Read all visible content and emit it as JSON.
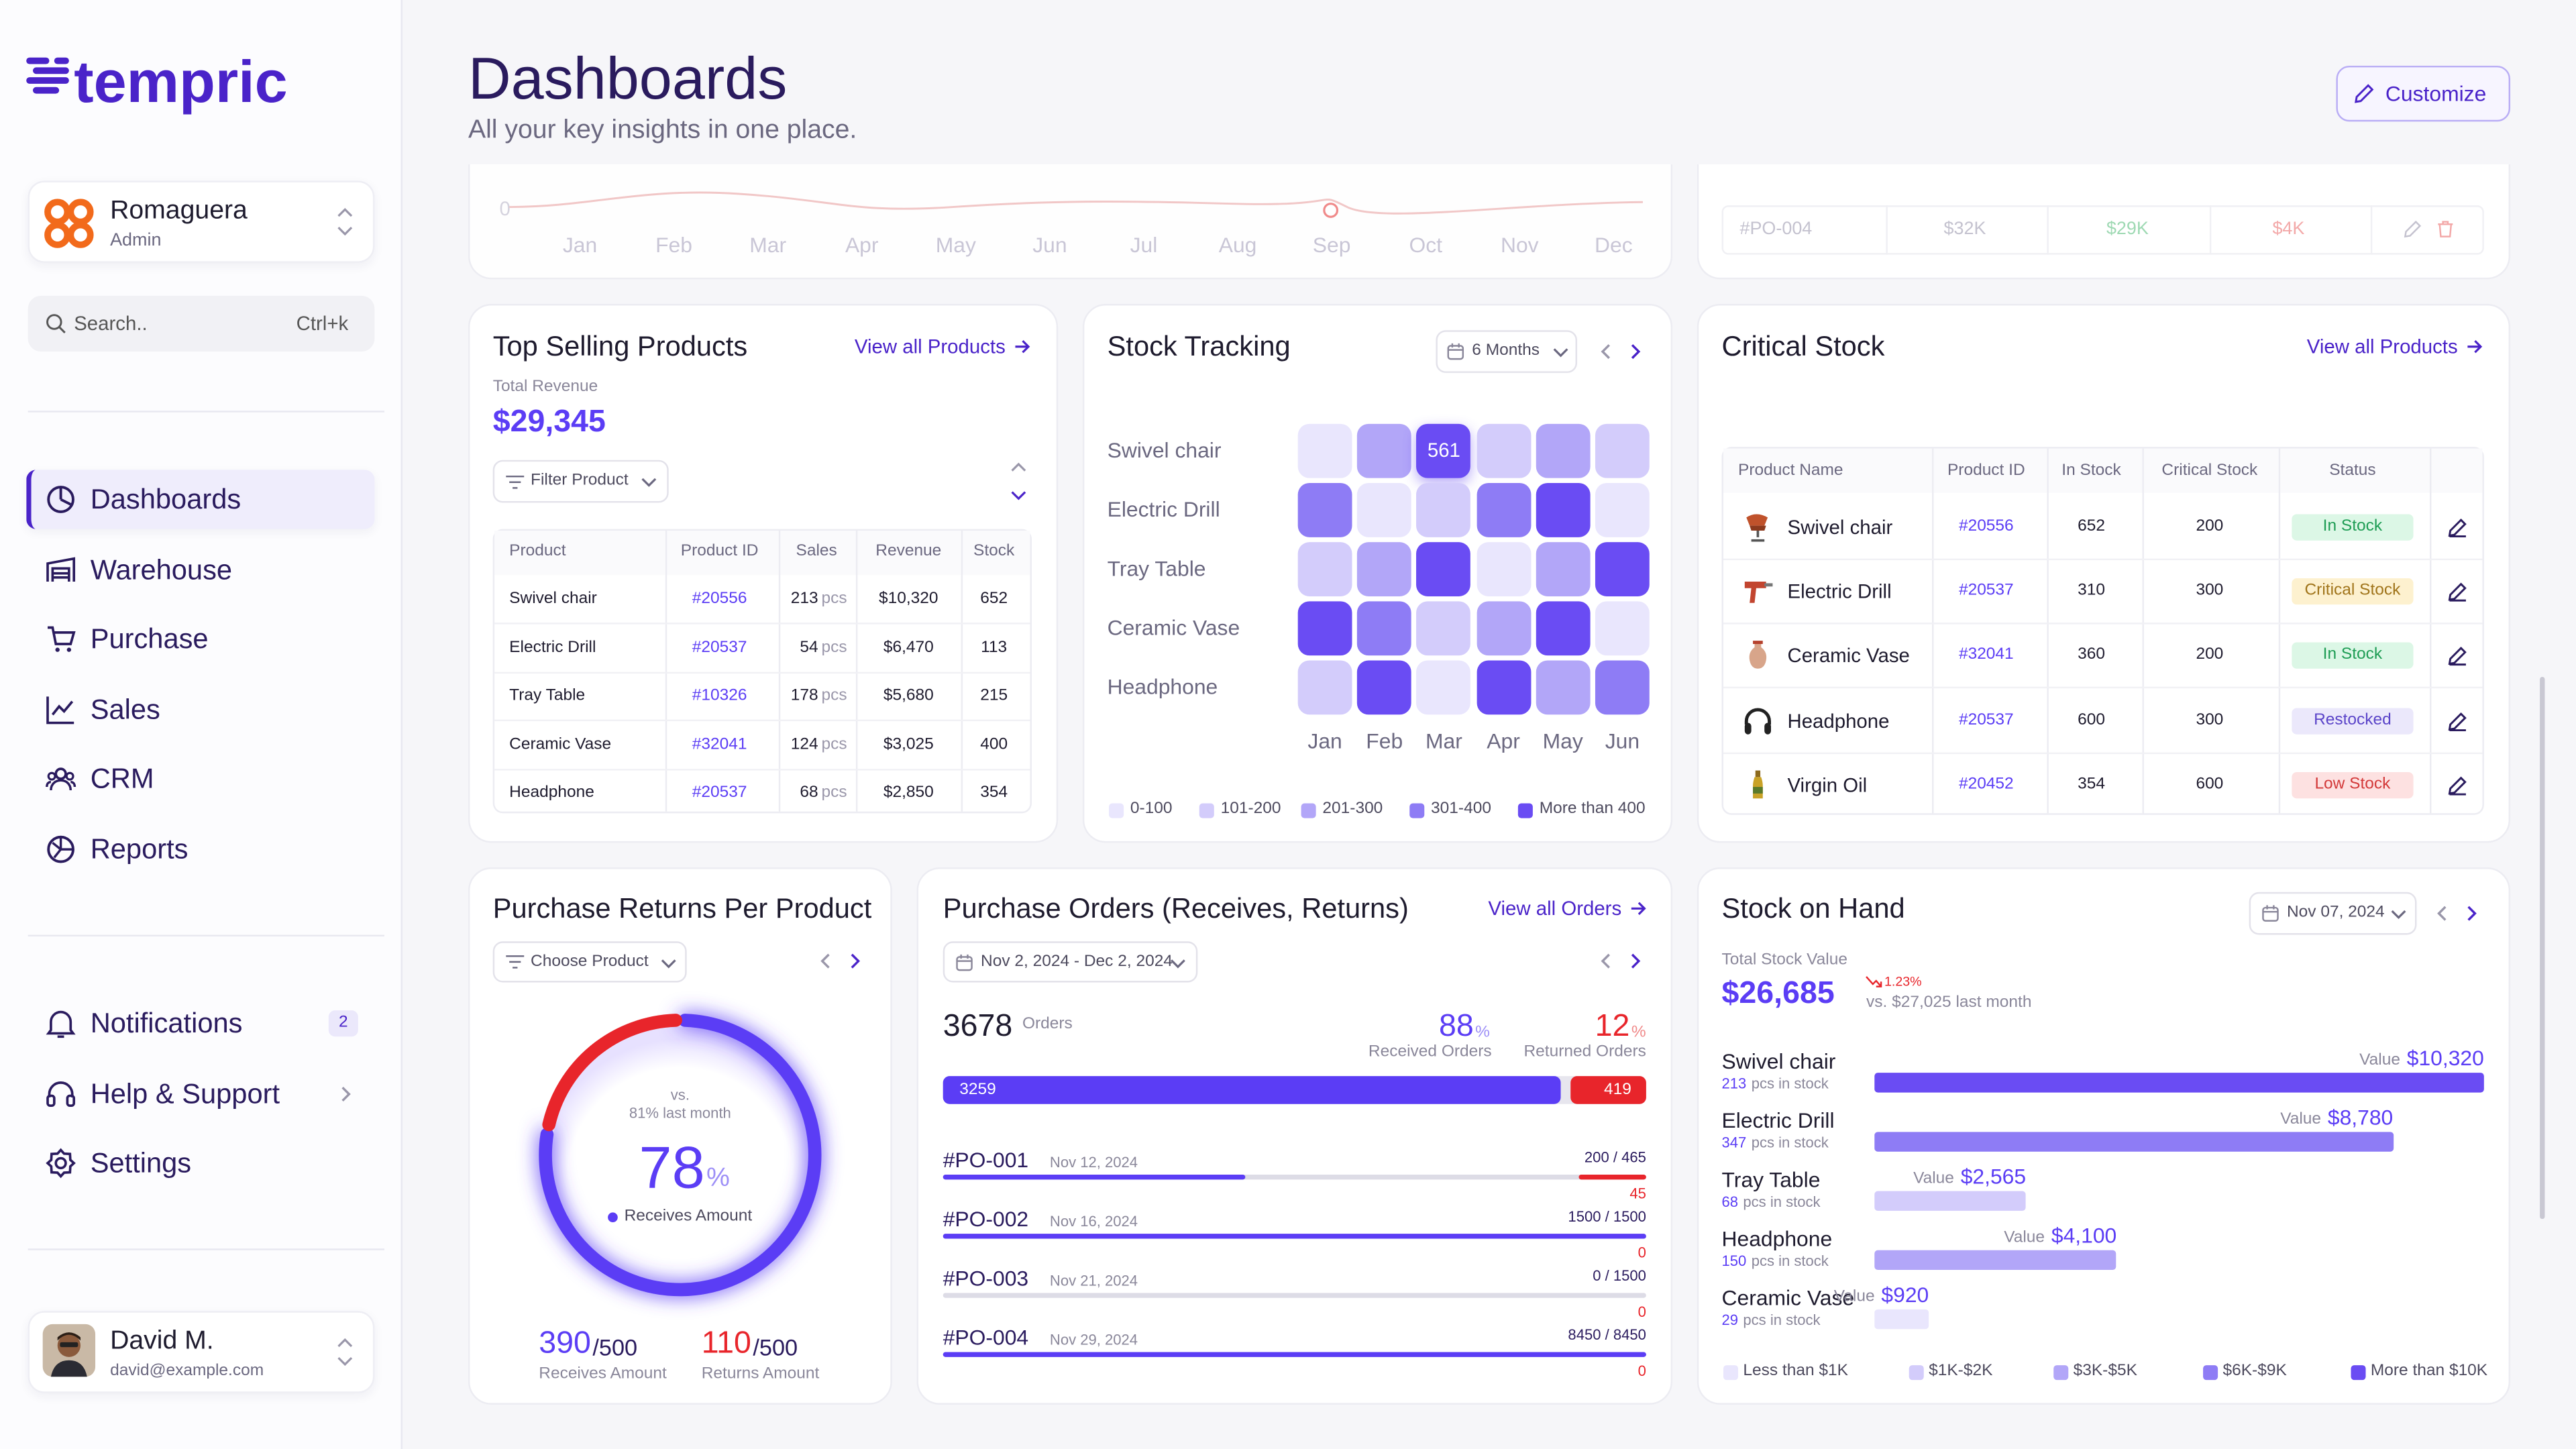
{
  "sidebar": {
    "brand": "tempric",
    "workspace": {
      "name": "Romaguera",
      "role": "Admin"
    },
    "search": {
      "placeholder": "Search..",
      "shortcut": "Ctrl+k"
    },
    "nav": [
      "Dashboards",
      "Warehouse",
      "Purchase",
      "Sales",
      "CRM",
      "Reports"
    ],
    "secondary_nav": [
      "Notifications",
      "Help & Support",
      "Settings"
    ],
    "notifications_badge": "2",
    "user": {
      "name": "David M.",
      "email": "david@example.com"
    }
  },
  "header": {
    "title": "Dashboards",
    "subtitle": "All your key insights in one place.",
    "button": "Customize"
  },
  "revenue_trend": {
    "zero_tick": "0",
    "months": [
      "Jan",
      "Feb",
      "Mar",
      "Apr",
      "May",
      "Jun",
      "Jul",
      "Aug",
      "Sep",
      "Oct",
      "Nov",
      "Dec"
    ]
  },
  "orders_preview": {
    "row": [
      "#PO-004",
      "$32K",
      "$29K",
      "$4K"
    ]
  },
  "top_selling": {
    "title": "Top Selling Products",
    "link": "View all Products",
    "revenue_label": "Total Revenue",
    "revenue": "$29,345",
    "filter": "Filter Product",
    "columns": [
      "Product",
      "Product ID",
      "Sales",
      "Revenue",
      "Stock"
    ],
    "rows": [
      {
        "product": "Swivel chair",
        "id": "#20556",
        "sales": "213",
        "unit": "pcs",
        "revenue": "$10,320",
        "stock": "652"
      },
      {
        "product": "Electric Drill",
        "id": "#20537",
        "sales": "54",
        "unit": "pcs",
        "revenue": "$6,470",
        "stock": "113"
      },
      {
        "product": "Tray Table",
        "id": "#10326",
        "sales": "178",
        "unit": "pcs",
        "revenue": "$5,680",
        "stock": "215"
      },
      {
        "product": "Ceramic Vase",
        "id": "#32041",
        "sales": "124",
        "unit": "pcs",
        "revenue": "$3,025",
        "stock": "400"
      },
      {
        "product": "Headphone",
        "id": "#20537",
        "sales": "68",
        "unit": "pcs",
        "revenue": "$2,850",
        "stock": "354"
      }
    ]
  },
  "stock_tracking": {
    "title": "Stock Tracking",
    "period": "6 Months",
    "products": [
      "Swivel chair",
      "Electric Drill",
      "Tray Table",
      "Ceramic Vase",
      "Headphone"
    ],
    "months": [
      "Jan",
      "Feb",
      "Mar",
      "Apr",
      "May",
      "Jun"
    ],
    "levels": [
      [
        0,
        2,
        4,
        1,
        2,
        1
      ],
      [
        3,
        0,
        1,
        3,
        4,
        0
      ],
      [
        1,
        2,
        4,
        0,
        2,
        4
      ],
      [
        4,
        3,
        1,
        2,
        4,
        0
      ],
      [
        1,
        4,
        0,
        4,
        2,
        3
      ]
    ],
    "values": [
      [
        null,
        null,
        561,
        null,
        null,
        null
      ],
      [
        null,
        null,
        null,
        null,
        null,
        null
      ],
      [
        null,
        null,
        null,
        null,
        null,
        null
      ],
      [
        null,
        null,
        null,
        null,
        null,
        null
      ],
      [
        null,
        null,
        null,
        null,
        null,
        null
      ]
    ],
    "legend": [
      "0-100",
      "101-200",
      "201-300",
      "301-400",
      "More than 400"
    ],
    "colors": [
      "#e9e6fd",
      "#d3ccfb",
      "#b2a6f8",
      "#8e7cf5",
      "#6a4cf3"
    ]
  },
  "critical_stock": {
    "title": "Critical Stock",
    "link": "View all Products",
    "columns": [
      "Product Name",
      "Product ID",
      "In Stock",
      "Critical Stock",
      "Status"
    ],
    "rows": [
      {
        "product": "Swivel chair",
        "id": "#20556",
        "in_stock": "652",
        "critical": "200",
        "status": "In Stock",
        "status_color": "#1f9d55",
        "status_bg": "#dcf7e6"
      },
      {
        "product": "Electric Drill",
        "id": "#20537",
        "in_stock": "310",
        "critical": "300",
        "status": "Critical Stock",
        "status_color": "#a0741a",
        "status_bg": "#fdf1cf"
      },
      {
        "product": "Ceramic Vase",
        "id": "#32041",
        "in_stock": "360",
        "critical": "200",
        "status": "In Stock",
        "status_color": "#1f9d55",
        "status_bg": "#dcf7e6"
      },
      {
        "product": "Headphone",
        "id": "#20537",
        "in_stock": "600",
        "critical": "300",
        "status": "Restocked",
        "status_color": "#5b45c9",
        "status_bg": "#ebe8fb"
      },
      {
        "product": "Virgin Oil",
        "id": "#20452",
        "in_stock": "354",
        "critical": "600",
        "status": "Low Stock",
        "status_color": "#d33a3a",
        "status_bg": "#fde1e1"
      }
    ]
  },
  "purchase_returns": {
    "title": "Purchase Returns Per Product",
    "filter": "Choose Product",
    "comparison_prefix": "vs.",
    "comparison": "81% last month",
    "percent": 78,
    "percent_unit": "%",
    "center_label": "Receives Amount",
    "receives": {
      "value": 390,
      "of": "/500",
      "label": "Receives Amount",
      "color": "#5b3df5"
    },
    "returns": {
      "value": 110,
      "of": "/500",
      "label": "Returns Amount",
      "color": "#e8252b"
    }
  },
  "purchase_orders": {
    "title": "Purchase Orders (Receives, Returns)",
    "link": "View all Orders",
    "period": "Nov 2, 2024 - Dec 2, 2024",
    "total": 3678,
    "total_label": "Orders",
    "received_pct": 88,
    "returned_pct": 12,
    "pct_unit": "%",
    "received_label": "Received Orders",
    "returned_label": "Returned Orders",
    "received": 3259,
    "returned": 419,
    "orders": [
      {
        "id": "#PO-001",
        "date": "Nov 12, 2024",
        "received": 200,
        "ordered": 465,
        "label": "200 / 465",
        "returned": 45
      },
      {
        "id": "#PO-002",
        "date": "Nov 16, 2024",
        "received": 1500,
        "ordered": 1500,
        "label": "1500 / 1500",
        "returned": 0
      },
      {
        "id": "#PO-003",
        "date": "Nov 21, 2024",
        "received": 0,
        "ordered": 1500,
        "label": "0 / 1500",
        "returned": 0
      },
      {
        "id": "#PO-004",
        "date": "Nov 29, 2024",
        "received": 8450,
        "ordered": 8450,
        "label": "8450 / 8450",
        "returned": 0
      }
    ]
  },
  "stock_on_hand": {
    "title": "Stock on Hand",
    "date": "Nov 07, 2024",
    "total_label": "Total Stock Value",
    "total": "$26,685",
    "change": "1.23%",
    "comparison": "vs. $27,025 last month",
    "value_label": "Value",
    "xlim": [
      0,
      10320
    ],
    "items": [
      {
        "name": "Swivel chair",
        "stock": "213",
        "stock_unit": "pcs in stock",
        "value": 10320,
        "value_label": "$10,320",
        "color": "#6a4cf3"
      },
      {
        "name": "Electric Drill",
        "stock": "347",
        "stock_unit": "pcs in stock",
        "value": 8780,
        "value_label": "$8,780",
        "color": "#8e7cf5"
      },
      {
        "name": "Tray Table",
        "stock": "68",
        "stock_unit": "pcs in stock",
        "value": 2565,
        "value_label": "$2,565",
        "color": "#d3ccfb"
      },
      {
        "name": "Headphone",
        "stock": "150",
        "stock_unit": "pcs in stock",
        "value": 4100,
        "value_label": "$4,100",
        "color": "#b2a6f8"
      },
      {
        "name": "Ceramic Vase",
        "stock": "29",
        "stock_unit": "pcs in stock",
        "value": 920,
        "value_label": "$920",
        "color": "#e9e6fd"
      }
    ],
    "legend": [
      {
        "label": "Less than $1K",
        "color": "#e9e6fd"
      },
      {
        "label": "$1K-$2K",
        "color": "#d3ccfb"
      },
      {
        "label": "$3K-$5K",
        "color": "#b2a6f8"
      },
      {
        "label": "$6K-$9K",
        "color": "#8e7cf5"
      },
      {
        "label": "More than $10K",
        "color": "#6a4cf3"
      }
    ]
  }
}
